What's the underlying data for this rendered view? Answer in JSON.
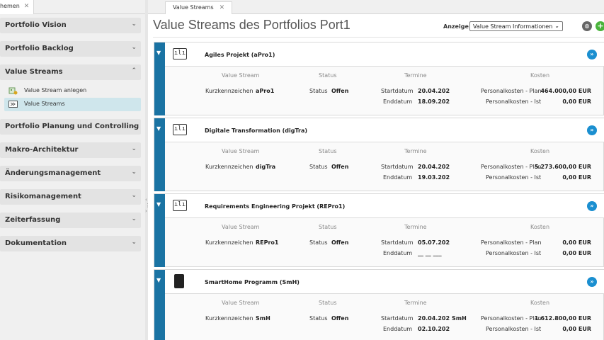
{
  "left_pane": {
    "tab_label": "hemen",
    "tab_close": "✕",
    "sections": [
      {
        "label": "Portfolio Vision",
        "chevron": "⌄"
      },
      {
        "label": "Portfolio Backlog",
        "chevron": "⌄"
      },
      {
        "label": "Value Streams",
        "chevron": "⌃"
      },
      {
        "label": "Portfolio Planung und Controlling",
        "chevron": "⌄"
      },
      {
        "label": "Makro-Architektur",
        "chevron": "⌄"
      },
      {
        "label": "Änderungsmanagement",
        "chevron": "⌄"
      },
      {
        "label": "Risikomanagement",
        "chevron": "⌄"
      },
      {
        "label": "Zeiterfassung",
        "chevron": "⌄"
      },
      {
        "label": "Dokumentation",
        "chevron": "⌄"
      }
    ],
    "value_stream_items": [
      {
        "label": "Value Stream anlegen",
        "icon": "add-value-stream-icon"
      },
      {
        "label": "Value Streams",
        "icon": "value-streams-icon"
      }
    ]
  },
  "right_pane": {
    "tab_label": "Value Streams",
    "tab_close": "✕",
    "title": "Value Streams des Portfolios Port1",
    "anzeige_label": "Anzeige",
    "anzeige_value": "Value Stream Informationen",
    "icons": {
      "toolbar_1": "settings-globe-icon",
      "toolbar_2": "add-icon"
    },
    "columns": {
      "value_stream": "Value Stream",
      "status": "Status",
      "termine": "Termine",
      "kosten": "Kosten"
    },
    "labels": {
      "kurzkennzeichen": "Kurzkennzeichen",
      "status": "Status",
      "startdatum": "Startdatum",
      "enddatum": "Enddatum",
      "personalkosten_plan": "Personalkosten - Plan",
      "personalkosten_ist": "Personalkosten - Ist"
    },
    "cards": [
      {
        "name": "Agiles Projekt (aPro1)",
        "icon": "project-chart-icon",
        "code": "aPro1",
        "status": "Offen",
        "start": "20.04.202",
        "end": "18.09.202",
        "extra": "",
        "plan": "464.000,00 EUR",
        "ist": "0,00 EUR"
      },
      {
        "name": "Digitale Transformation (digTra)",
        "icon": "project-chart-icon",
        "code": "digTra",
        "status": "Offen",
        "start": "20.04.202",
        "end": "19.03.202",
        "extra": "",
        "plan": "5.273.600,00 EUR",
        "ist": "0,00 EUR"
      },
      {
        "name": "Requirements Engineering Projekt (REPro1)",
        "icon": "project-chart-icon",
        "code": "REPro1",
        "status": "Offen",
        "start": "05.07.202",
        "end": "__ __ ___",
        "extra": "",
        "plan": "0,00 EUR",
        "ist": "0,00 EUR"
      },
      {
        "name": "SmartHome Programm (SmH)",
        "icon": "program-icon",
        "code": "SmH",
        "status": "Offen",
        "start": "20.04.202",
        "end": "02.10.202",
        "extra": "SmH",
        "plan": "1.612.800,00 EUR",
        "ist": "0,00 EUR"
      }
    ]
  }
}
